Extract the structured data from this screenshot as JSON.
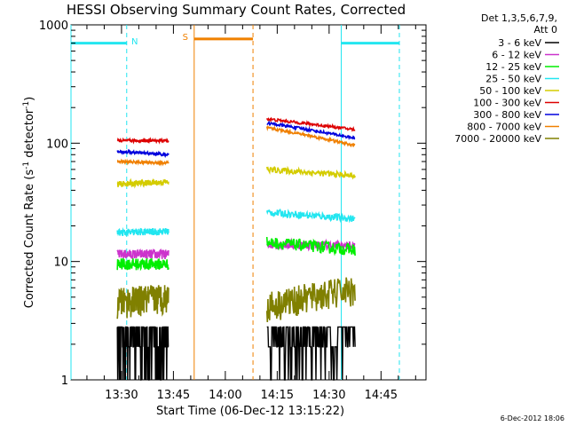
{
  "chart_data": {
    "type": "line",
    "title": "HESSI Observing Summary Count Rates, Corrected",
    "xlabel": "Start Time (06-Dec-12 13:15:22)",
    "ylabel_main": "Corrected Count Rate (s",
    "ylabel_sup1": "-1",
    "ylabel_mid": " detector",
    "ylabel_sup2": "-1",
    "ylabel_end": ")",
    "yscale": "log",
    "ylim": [
      1,
      1000
    ],
    "xlim_minutes": [
      795.4,
      898.0
    ],
    "y_ticks": [
      {
        "value": 1,
        "label": "1"
      },
      {
        "value": 10,
        "label": "10"
      },
      {
        "value": 100,
        "label": "100"
      },
      {
        "value": 1000,
        "label": "1000"
      }
    ],
    "x_ticks": [
      {
        "minute": 810,
        "label": "13:30"
      },
      {
        "minute": 825,
        "label": "13:45"
      },
      {
        "minute": 840,
        "label": "14:00"
      },
      {
        "minute": 855,
        "label": "14:15"
      },
      {
        "minute": 870,
        "label": "14:30"
      },
      {
        "minute": 885,
        "label": "14:45"
      }
    ],
    "legend": {
      "header1": "Det 1,3,5,6,7,9,",
      "header2": "Att 0",
      "placement": "right",
      "entries": [
        {
          "label": "3 - 6 keV",
          "color": "#000000"
        },
        {
          "label": "6 - 12 keV",
          "color": "#cc33cc"
        },
        {
          "label": "12 - 25 keV",
          "color": "#00ee00"
        },
        {
          "label": "25 - 50 keV",
          "color": "#22e6f0"
        },
        {
          "label": "50 - 100 keV",
          "color": "#d4cc00"
        },
        {
          "label": "100 - 300 keV",
          "color": "#dd0000"
        },
        {
          "label": "300 - 800 keV",
          "color": "#0000dd"
        },
        {
          "label": "800 - 7000 keV",
          "color": "#f08000"
        },
        {
          "label": "7000 - 20000 keV",
          "color": "#808000"
        }
      ]
    },
    "flags": [
      {
        "label": "N",
        "color": "#22e6f0",
        "segments": [
          [
            795.4,
            811.5
          ],
          [
            873.5,
            890.3
          ]
        ]
      },
      {
        "label": "S",
        "color": "#f08000",
        "segments": [
          [
            831.0,
            848.0
          ]
        ]
      }
    ],
    "segments": [
      {
        "start": 808.8,
        "end": 823.6
      },
      {
        "start": 852.0,
        "end": 877.5
      }
    ],
    "series": [
      {
        "name": "3 - 6 keV",
        "color": "#000000",
        "seg1": [
          2.7,
          2.7
        ],
        "seg2": [
          2.7,
          2.7
        ],
        "noise": 0.08
      },
      {
        "name": "6 - 12 keV",
        "color": "#cc33cc",
        "seg1": [
          11.5,
          11.5
        ],
        "seg2": [
          14.0,
          13.5
        ],
        "noise": 0.04
      },
      {
        "name": "12 - 25 keV",
        "color": "#00ee00",
        "seg1": [
          9.5,
          9.5
        ],
        "seg2": [
          14.5,
          12.5
        ],
        "noise": 0.05
      },
      {
        "name": "25 - 50 keV",
        "color": "#22e6f0",
        "seg1": [
          17.5,
          18.0
        ],
        "seg2": [
          26.0,
          23.0
        ],
        "noise": 0.03
      },
      {
        "name": "50 - 100 keV",
        "color": "#d4cc00",
        "seg1": [
          45.0,
          47.0
        ],
        "seg2": [
          60.0,
          53.0
        ],
        "noise": 0.025
      },
      {
        "name": "100 - 300 keV",
        "color": "#dd0000",
        "seg1": [
          105.0,
          105.0
        ],
        "seg2": [
          160.0,
          130.0
        ],
        "noise": 0.012
      },
      {
        "name": "300 - 800 keV",
        "color": "#0000dd",
        "seg1": [
          85.0,
          80.0
        ],
        "seg2": [
          148.0,
          110.0
        ],
        "noise": 0.012
      },
      {
        "name": "800 - 7000 keV",
        "color": "#f08000",
        "seg1": [
          70.0,
          68.0
        ],
        "seg2": [
          135.0,
          95.0
        ],
        "noise": 0.012
      },
      {
        "name": "7000 - 20000 keV",
        "color": "#808000",
        "seg1": [
          4.5,
          5.0
        ],
        "seg2": [
          4.2,
          5.8
        ],
        "noise": 0.06
      }
    ]
  },
  "footer": {
    "date": "6-Dec-2012 18:06"
  }
}
